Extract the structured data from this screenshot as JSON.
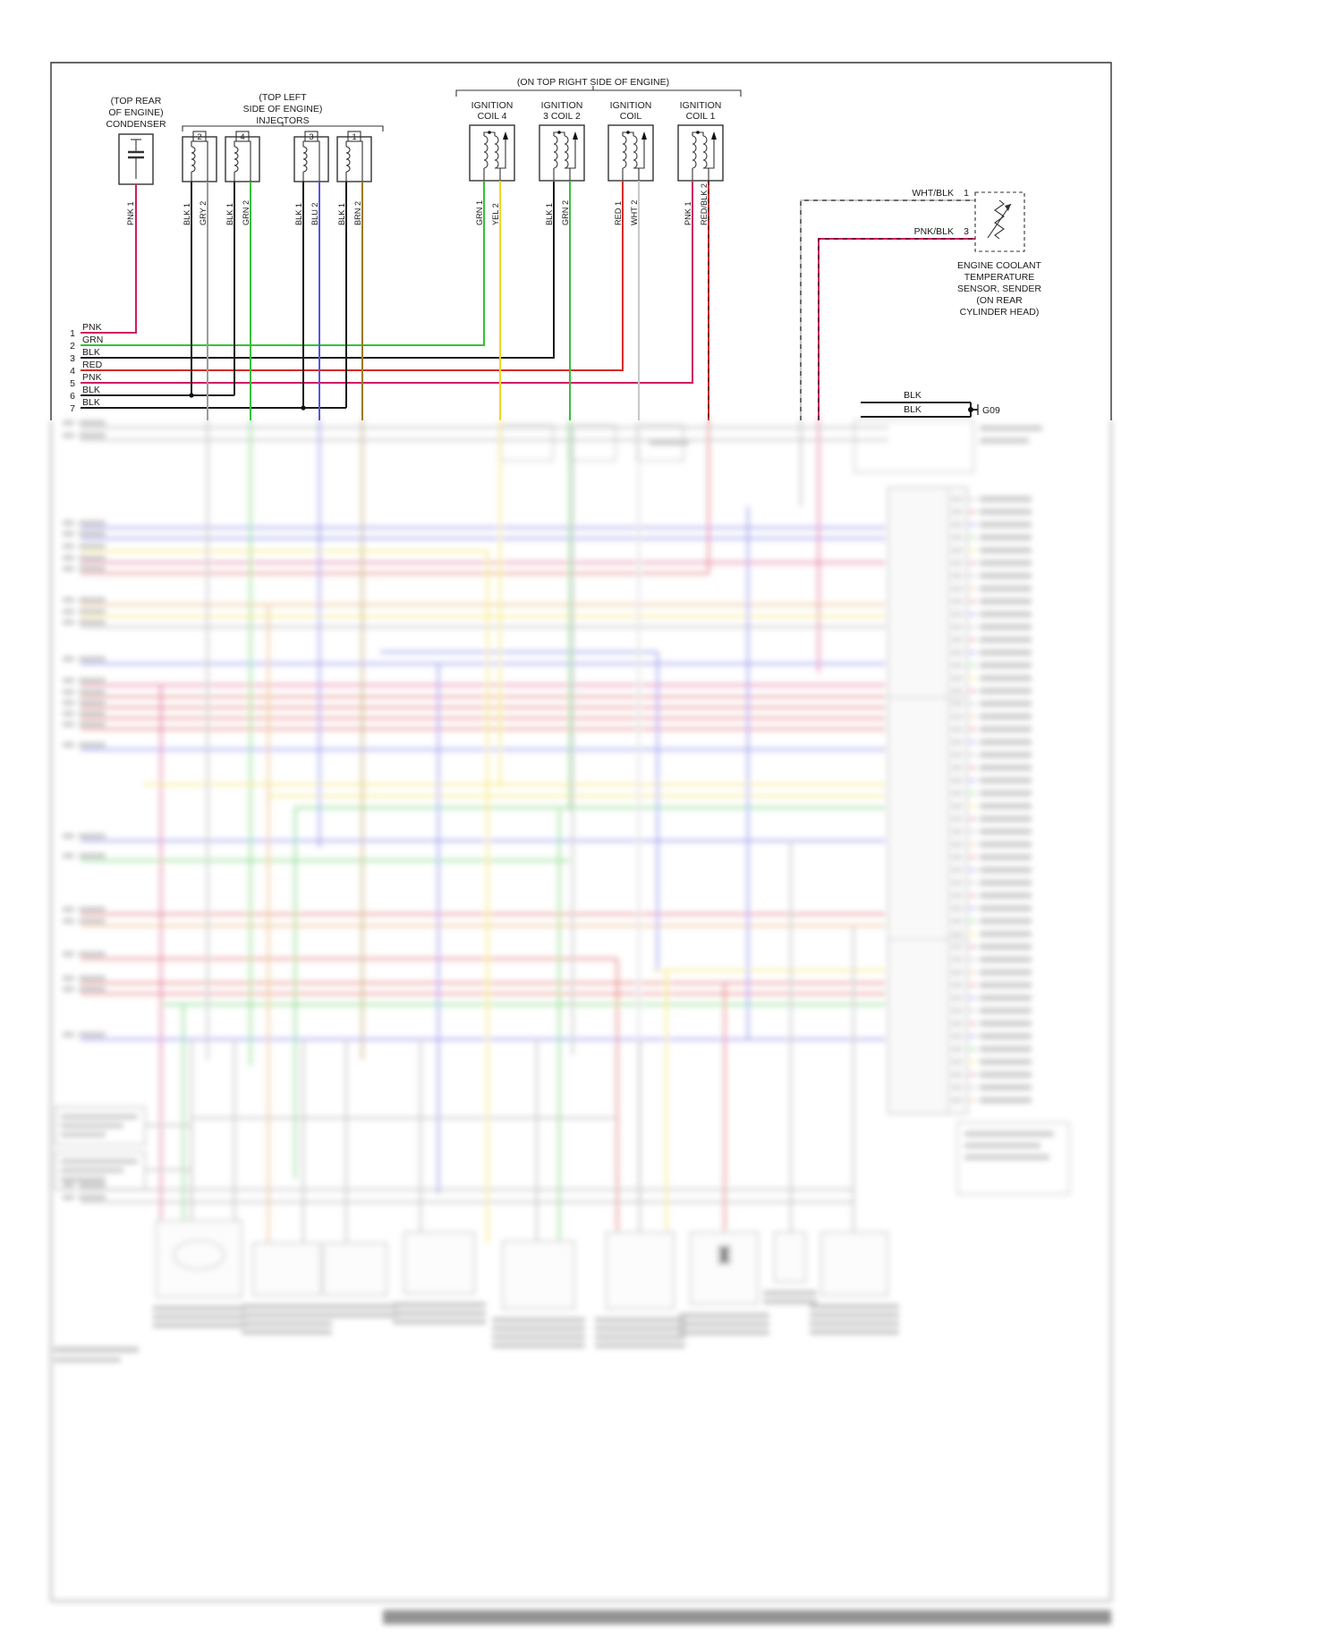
{
  "colors": {
    "PNK": "#d01b60",
    "GRN": "#35c13a",
    "BLK": "#1a1a1a",
    "RED": "#d42a2a",
    "GRY": "#9b9b9b",
    "BLU": "#5555e0",
    "BRN": "#9b7a1e",
    "YEL": "#f0d820",
    "WHT": "#c8c8c8",
    "ORN": "#e0953c"
  },
  "diagram": {
    "top_right_note": "(ON TOP RIGHT SIDE OF ENGINE)",
    "condenser": {
      "label1": "(TOP REAR",
      "label2": "OF ENGINE)",
      "label3": "CONDENSER",
      "pin": "PNK 1"
    },
    "injectors": {
      "label1": "(TOP LEFT",
      "label2": "SIDE OF ENGINE)",
      "label3": "INJECTORS",
      "items": [
        {
          "num": "2",
          "pin1": "BLK 1",
          "pin2": "GRY 2"
        },
        {
          "num": "4",
          "pin1": "BLK 1",
          "pin2": "GRN 2"
        },
        {
          "num": "3",
          "pin1": "BLK 1",
          "pin2": "BLU 2"
        },
        {
          "num": "1",
          "pin1": "BLK 1",
          "pin2": "BRN 2"
        }
      ]
    },
    "coils": [
      {
        "line1": "IGNITION",
        "line2": "COIL 4",
        "pin1": "GRN 1",
        "pin2": "YEL 2"
      },
      {
        "line1": "IGNITION",
        "line2": "3 COIL 2",
        "pin1": "BLK 1",
        "pin2": "GRN 2"
      },
      {
        "line1": "IGNITION",
        "line2": "COIL",
        "pin1": "RED 1",
        "pin2": "WHT 2"
      },
      {
        "line1": "IGNITION",
        "line2": "COIL 1",
        "pin1": "PNK 1",
        "pin2": "RED/BLK 2"
      }
    ],
    "rows": [
      {
        "num": "1",
        "label": "PNK"
      },
      {
        "num": "2",
        "label": "GRN"
      },
      {
        "num": "3",
        "label": "BLK"
      },
      {
        "num": "4",
        "label": "RED"
      },
      {
        "num": "5",
        "label": "PNK"
      },
      {
        "num": "6",
        "label": "BLK"
      },
      {
        "num": "7",
        "label": "BLK"
      }
    ],
    "ect": {
      "wire_top": "WHT/BLK",
      "pin_top": "1",
      "wire_bottom": "PNK/BLK",
      "pin_bottom": "3",
      "caption1": "ENGINE COOLANT",
      "caption2": "TEMPERATURE",
      "caption3": "SENSOR, SENDER",
      "caption4": "(ON REAR",
      "caption5": "CYLINDER HEAD)"
    },
    "ground": {
      "wire1": "BLK",
      "wire2": "BLK",
      "label": "G09"
    }
  }
}
